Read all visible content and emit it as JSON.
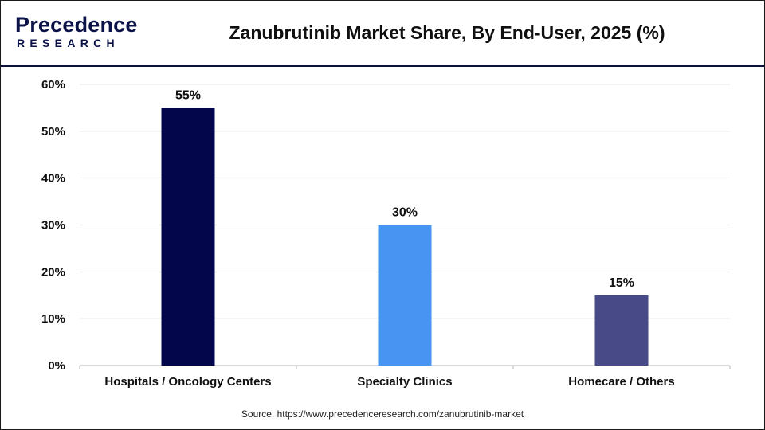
{
  "logo": {
    "top_text": "Precedence",
    "bottom_text": "RESEARCH"
  },
  "title": "Zanubrutinib Market Share, By End-User, 2025 (%)",
  "source": "Source: https://www.precedenceresearch.com/zanubrutinib-market",
  "colors": {
    "header_rule": "#0d1138",
    "bar_1": "#03064a",
    "bar_2": "#4794f3",
    "bar_3": "#474a86",
    "grid": "#e6e6e6"
  },
  "chart_data": {
    "type": "bar",
    "categories": [
      "Hospitals / Oncology Centers",
      "Specialty Clinics",
      "Homecare / Others"
    ],
    "values": [
      55,
      30,
      15
    ],
    "data_labels": [
      "55%",
      "30%",
      "15%"
    ],
    "bar_colors": [
      "#03064a",
      "#4794f3",
      "#474a86"
    ],
    "ylim": [
      0,
      60
    ],
    "yticks": [
      0,
      10,
      20,
      30,
      40,
      50,
      60
    ],
    "ytick_labels": [
      "0%",
      "10%",
      "20%",
      "30%",
      "40%",
      "50%",
      "60%"
    ],
    "grid": true,
    "legend": "none"
  }
}
